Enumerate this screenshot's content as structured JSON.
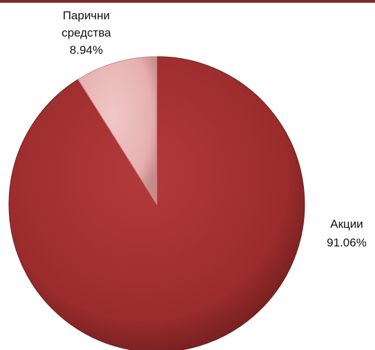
{
  "colors": {
    "top_rule": "#7d2a2a",
    "background": "#ffffff"
  },
  "chart_data": {
    "type": "pie",
    "title": "",
    "slices": [
      {
        "label": "Акции",
        "value": 91.06,
        "value_label": "91.06%",
        "color": "#9b2c2c",
        "highlight": "#b43a3a",
        "shadow": "#6d1d1d"
      },
      {
        "label": "Парични средства",
        "label_lines": [
          "Парични",
          "средства"
        ],
        "value": 8.94,
        "value_label": "8.94%",
        "color": "#e6b0b0",
        "highlight": "#f1c7c7",
        "shadow": "#c78b8b"
      }
    ],
    "legend": "none"
  }
}
